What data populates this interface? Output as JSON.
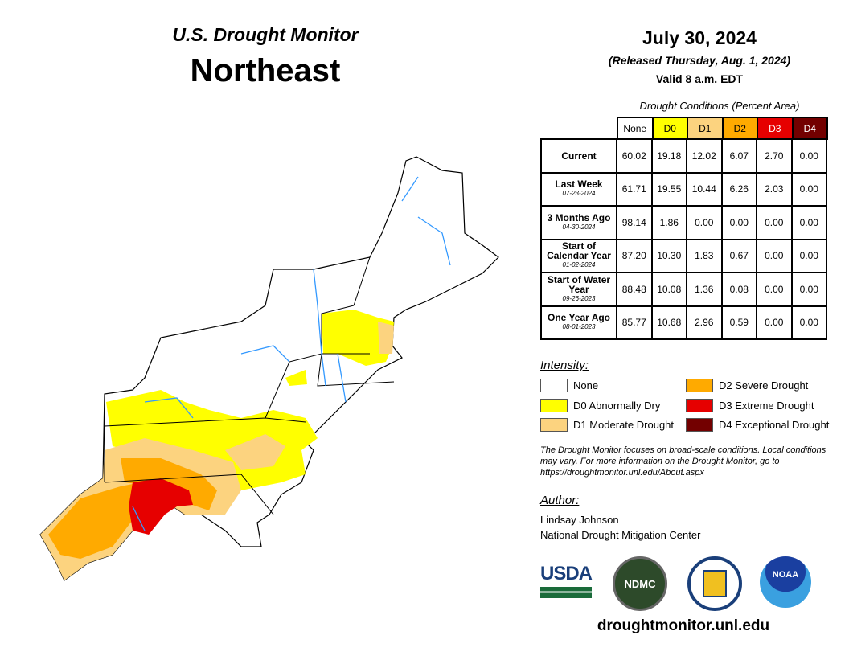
{
  "header": {
    "product": "U.S. Drought Monitor",
    "region": "Northeast",
    "date": "July 30, 2024",
    "released": "(Released Thursday, Aug. 1, 2024)",
    "valid": "Valid 8 a.m. EDT"
  },
  "table": {
    "title": "Drought Conditions (Percent Area)",
    "columns": [
      "None",
      "D0",
      "D1",
      "D2",
      "D3",
      "D4"
    ],
    "rows": [
      {
        "label": "Current",
        "date": "",
        "values": [
          "60.02",
          "19.18",
          "12.02",
          "6.07",
          "2.70",
          "0.00"
        ]
      },
      {
        "label": "Last Week",
        "date": "07-23-2024",
        "values": [
          "61.71",
          "19.55",
          "10.44",
          "6.26",
          "2.03",
          "0.00"
        ]
      },
      {
        "label": "3 Months Ago",
        "date": "04-30-2024",
        "values": [
          "98.14",
          "1.86",
          "0.00",
          "0.00",
          "0.00",
          "0.00"
        ]
      },
      {
        "label": "Start of Calendar Year",
        "date": "01-02-2024",
        "values": [
          "87.20",
          "10.30",
          "1.83",
          "0.67",
          "0.00",
          "0.00"
        ]
      },
      {
        "label": "Start of Water Year",
        "date": "09-26-2023",
        "values": [
          "88.48",
          "10.08",
          "1.36",
          "0.08",
          "0.00",
          "0.00"
        ]
      },
      {
        "label": "One Year Ago",
        "date": "08-01-2023",
        "values": [
          "85.77",
          "10.68",
          "2.96",
          "0.59",
          "0.00",
          "0.00"
        ]
      }
    ]
  },
  "legend": {
    "title": "Intensity:",
    "items": [
      {
        "label": "None",
        "color": "#ffffff"
      },
      {
        "label": "D0 Abnormally Dry",
        "color": "#ffff00"
      },
      {
        "label": "D1 Moderate Drought",
        "color": "#fcd37f"
      },
      {
        "label": "D2 Severe Drought",
        "color": "#ffaa00"
      },
      {
        "label": "D3 Extreme Drought",
        "color": "#e60000"
      },
      {
        "label": "D4 Exceptional Drought",
        "color": "#730000"
      }
    ]
  },
  "note": "The Drought Monitor focuses on broad-scale conditions. Local conditions may vary. For more information on the Drought Monitor, go to https://droughtmonitor.unl.edu/About.aspx",
  "author": {
    "title": "Author:",
    "name": "Lindsay Johnson",
    "org": "National Drought Mitigation Center"
  },
  "logos": {
    "usda": "USDA",
    "ndmc": "NDMC",
    "noaa": "NOAA"
  },
  "footer_url": "droughtmonitor.unl.edu"
}
